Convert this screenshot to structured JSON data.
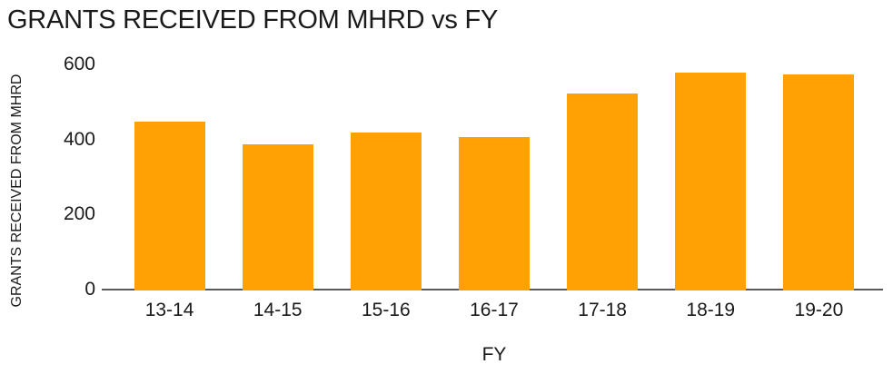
{
  "chart_data": {
    "type": "bar",
    "title": "GRANTS RECEIVED FROM MHRD vs FY",
    "xlabel": "FY",
    "ylabel": "GRANTS RECEIVED FROM MHRD",
    "categories": [
      "13-14",
      "14-15",
      "15-16",
      "16-17",
      "17-18",
      "18-19",
      "19-20"
    ],
    "values": [
      450,
      390,
      420,
      410,
      525,
      580,
      575
    ],
    "ylim": [
      0,
      600
    ],
    "yticks": [
      0,
      200,
      400,
      600
    ],
    "grid": false,
    "legend": "none",
    "bar_color": "#FFA005",
    "axis_line_color": "#58595B",
    "text_color": "#1A1A1A",
    "background_color": "#FFFFFF"
  }
}
